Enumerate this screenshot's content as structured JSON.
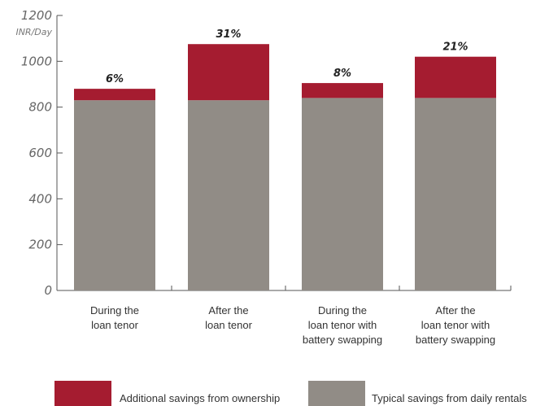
{
  "chart_data": {
    "type": "bar",
    "stacked": true,
    "y_unit": "INR/Day",
    "ylim": [
      0,
      1200
    ],
    "yticks": [
      "0",
      "200",
      "400",
      "600",
      "800",
      "1000",
      "1200"
    ],
    "categories": [
      [
        "During the",
        "loan tenor"
      ],
      [
        "After the",
        "loan tenor"
      ],
      [
        "During the",
        "loan tenor with",
        "battery swapping"
      ],
      [
        "After the",
        "loan tenor with",
        "battery swapping"
      ]
    ],
    "series": [
      {
        "name": "Typical savings from daily rentals",
        "color": "#918c86",
        "values": [
          830,
          830,
          840,
          840
        ]
      },
      {
        "name": "Additional savings from ownership",
        "color": "#a51c30",
        "values": [
          50,
          245,
          65,
          180
        ]
      }
    ],
    "data_labels": [
      "6%",
      "31%",
      "8%",
      "21%"
    ],
    "legend": [
      {
        "name": "Additional savings from ownership",
        "color": "#a51c30"
      },
      {
        "name": "Typical savings from daily rentals",
        "color": "#918c86"
      }
    ],
    "legend_position": "bottom",
    "grid": false
  }
}
